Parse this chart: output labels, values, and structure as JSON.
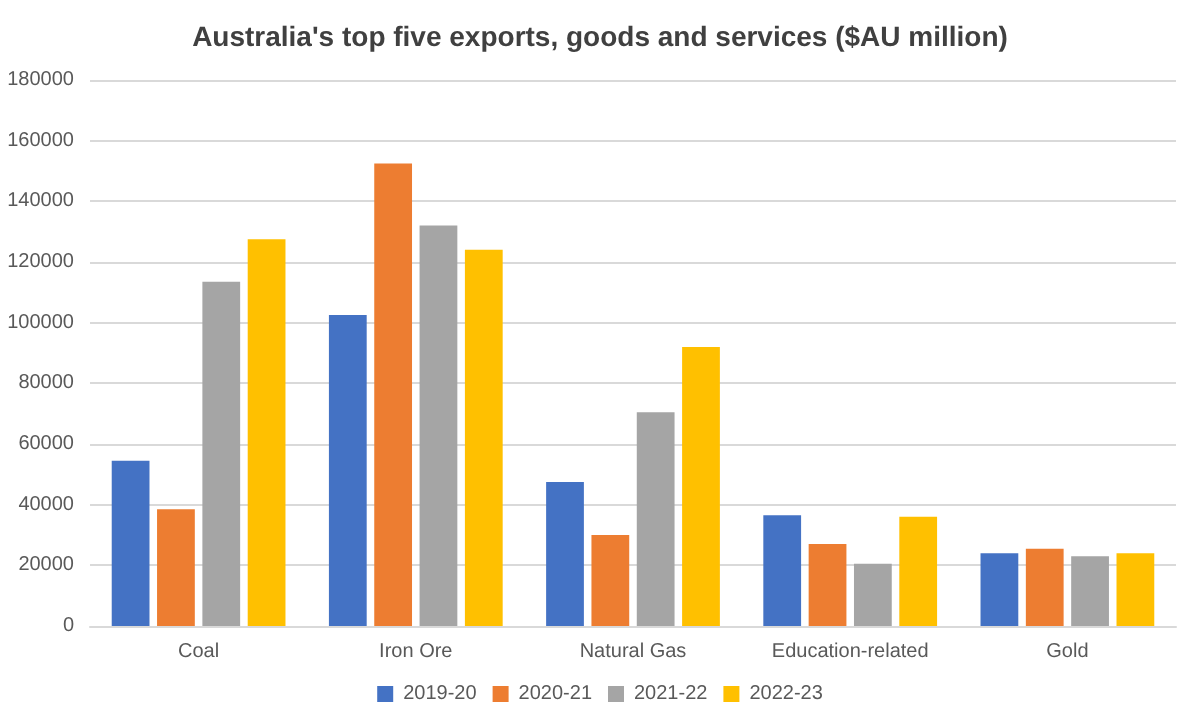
{
  "chart_data": {
    "type": "bar",
    "title": "Australia's top five exports, goods and services ($AU million)",
    "categories": [
      "Coal",
      "Iron Ore",
      "Natural Gas",
      "Education-related",
      "Gold"
    ],
    "series": [
      {
        "name": "2019-20",
        "color": "#4472c4",
        "values": [
          54500,
          102500,
          47500,
          36500,
          24000
        ]
      },
      {
        "name": "2020-21",
        "color": "#ed7d31",
        "values": [
          38500,
          152500,
          30000,
          27000,
          25500
        ]
      },
      {
        "name": "2021-22",
        "color": "#a5a5a5",
        "values": [
          113500,
          132000,
          70500,
          20500,
          23000
        ]
      },
      {
        "name": "2022-23",
        "color": "#ffc000",
        "values": [
          127500,
          124000,
          92000,
          36000,
          24000
        ]
      }
    ],
    "ylim": [
      0,
      180000
    ],
    "yticks": [
      0,
      20000,
      40000,
      60000,
      80000,
      100000,
      120000,
      140000,
      160000,
      180000
    ],
    "grid": "y",
    "legend": "bottom"
  }
}
